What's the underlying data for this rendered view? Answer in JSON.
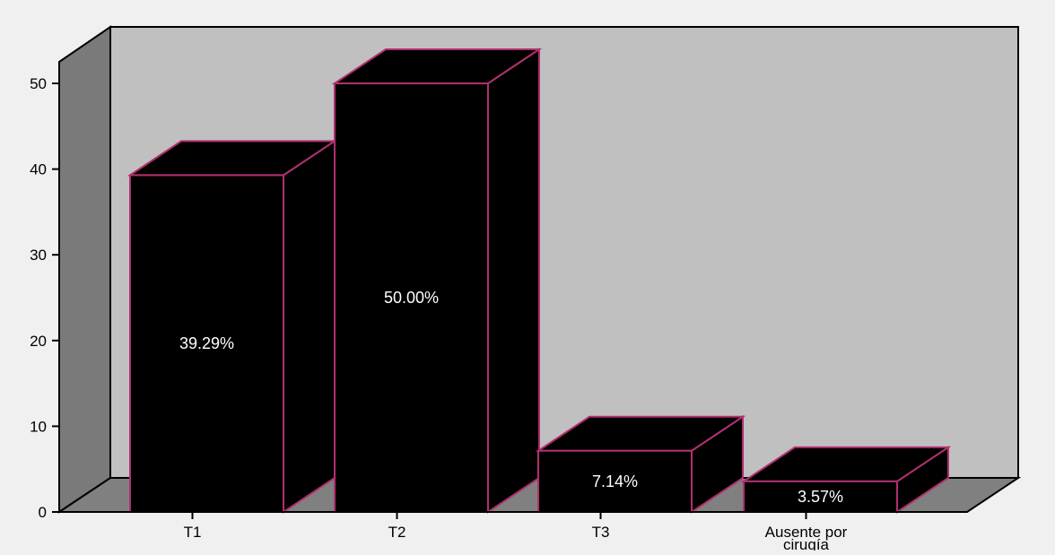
{
  "chart_data": {
    "type": "bar",
    "title": "",
    "xlabel": "",
    "ylabel": "",
    "categories": [
      "T1",
      "T2",
      "T3",
      "Ausente por cirugía"
    ],
    "category_lines": [
      [
        "T1"
      ],
      [
        "T2"
      ],
      [
        "T3"
      ],
      [
        "Ausente por",
        "cirugía"
      ]
    ],
    "values": [
      39.29,
      50.0,
      7.14,
      3.57
    ],
    "data_labels": [
      "39.29%",
      "50.00%",
      "7.14%",
      "3.57%"
    ],
    "ylim": [
      0,
      50
    ],
    "yticks": [
      0,
      10,
      20,
      30,
      40,
      50
    ],
    "ytick_labels": [
      "0",
      "10",
      "20",
      "30",
      "40",
      "50"
    ],
    "grid": false,
    "style": "3d",
    "colors": {
      "bar_fill": "#000000",
      "bar_edge": "#b0306e",
      "back_wall": "#c0c0c0",
      "side_wall": "#7a7a7a",
      "floor": "#808080",
      "axis": "#000000",
      "label_text": "#ffffff",
      "background": "#f0f0f0"
    }
  }
}
